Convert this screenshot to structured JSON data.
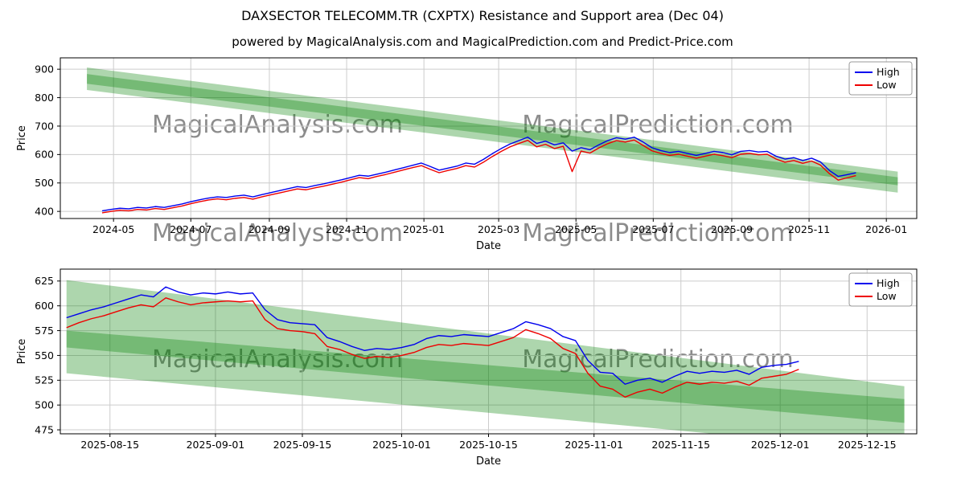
{
  "figure": {
    "title": "DAXSECTOR TELECOMM.TR (CXPTX) Resistance and Support area (Dec 04)",
    "subtitle": "powered by MagicalAnalysis.com and MagicalPrediction.com and Predict-Price.com",
    "watermark_left": "MagicalAnalysis.com",
    "watermark_right": "MagicalPrediction.com",
    "colors": {
      "high": "#0000ee",
      "low": "#ee0000",
      "band": "#008000",
      "grid": "#cccccc",
      "spine": "#000000"
    }
  },
  "chart_data": [
    {
      "type": "line",
      "xlabel": "Date",
      "ylabel": "Price",
      "x_domain": [
        "2024-03-20",
        "2026-01-25"
      ],
      "ylim": [
        375,
        940
      ],
      "yticks": [
        400,
        500,
        600,
        700,
        800,
        900
      ],
      "xticks": [
        {
          "date": "2024-05-01",
          "label": "2024-05"
        },
        {
          "date": "2024-07-01",
          "label": "2024-07"
        },
        {
          "date": "2024-09-01",
          "label": "2024-09"
        },
        {
          "date": "2024-11-01",
          "label": "2024-11"
        },
        {
          "date": "2025-01-01",
          "label": "2025-01"
        },
        {
          "date": "2025-03-01",
          "label": "2025-03"
        },
        {
          "date": "2025-05-01",
          "label": "2025-05"
        },
        {
          "date": "2025-07-01",
          "label": "2025-07"
        },
        {
          "date": "2025-09-01",
          "label": "2025-09"
        },
        {
          "date": "2025-11-01",
          "label": "2025-11"
        },
        {
          "date": "2026-01-01",
          "label": "2026-01"
        }
      ],
      "grid": true,
      "legend_position": "top-right",
      "legend": [
        {
          "label": "High",
          "color": "#0000ee"
        },
        {
          "label": "Low",
          "color": "#ee0000"
        }
      ],
      "band_alpha": 0.32,
      "bands": [
        {
          "x": [
            "2024-04-10",
            "2026-01-10"
          ],
          "top": [
            906,
            540
          ],
          "bottom": [
            849,
            492
          ]
        },
        {
          "x": [
            "2024-04-10",
            "2026-01-10"
          ],
          "top": [
            883,
            520
          ],
          "bottom": [
            827,
            466
          ]
        }
      ],
      "series": [
        {
          "name": "High",
          "color": "#0000ee",
          "start": "2024-04-22",
          "step_days": 7,
          "values": [
            402,
            407,
            411,
            409,
            414,
            412,
            417,
            414,
            420,
            426,
            434,
            441,
            447,
            451,
            449,
            454,
            457,
            451,
            459,
            466,
            473,
            480,
            487,
            484,
            491,
            497,
            504,
            511,
            519,
            527,
            524,
            531,
            538,
            546,
            554,
            562,
            570,
            558,
            545,
            552,
            559,
            570,
            566,
            583,
            603,
            621,
            637,
            649,
            661,
            639,
            647,
            634,
            641,
            612,
            624,
            617,
            634,
            649,
            659,
            654,
            661,
            644,
            624,
            614,
            607,
            611,
            604,
            597,
            604,
            611,
            607,
            599,
            611,
            614,
            609,
            611,
            594,
            584,
            589,
            579,
            587,
            574,
            544,
            523,
            529,
            536
          ]
        },
        {
          "name": "Low",
          "color": "#ee0000",
          "start": "2024-04-22",
          "step_days": 7,
          "values": [
            395,
            400,
            404,
            402,
            407,
            405,
            410,
            407,
            413,
            419,
            427,
            434,
            440,
            444,
            441,
            446,
            449,
            443,
            451,
            458,
            465,
            472,
            479,
            476,
            483,
            489,
            496,
            503,
            511,
            519,
            515,
            523,
            530,
            538,
            546,
            554,
            561,
            548,
            536,
            544,
            551,
            561,
            556,
            573,
            593,
            611,
            627,
            639,
            650,
            627,
            636,
            621,
            629,
            540,
            612,
            605,
            623,
            638,
            649,
            644,
            651,
            632,
            613,
            604,
            597,
            601,
            594,
            587,
            594,
            601,
            596,
            589,
            601,
            604,
            599,
            601,
            584,
            573,
            579,
            569,
            577,
            563,
            533,
            510,
            518,
            526
          ]
        }
      ]
    },
    {
      "type": "line",
      "xlabel": "Date",
      "ylabel": "Price",
      "x_domain": [
        "2025-08-07",
        "2025-12-23"
      ],
      "ylim": [
        471,
        637
      ],
      "yticks": [
        475,
        500,
        525,
        550,
        575,
        600,
        625
      ],
      "xticks": [
        {
          "date": "2025-08-15",
          "label": "2025-08-15"
        },
        {
          "date": "2025-09-01",
          "label": "2025-09-01"
        },
        {
          "date": "2025-09-15",
          "label": "2025-09-15"
        },
        {
          "date": "2025-10-01",
          "label": "2025-10-01"
        },
        {
          "date": "2025-10-15",
          "label": "2025-10-15"
        },
        {
          "date": "2025-11-01",
          "label": "2025-11-01"
        },
        {
          "date": "2025-11-15",
          "label": "2025-11-15"
        },
        {
          "date": "2025-12-01",
          "label": "2025-12-01"
        },
        {
          "date": "2025-12-15",
          "label": "2025-12-15"
        }
      ],
      "grid": true,
      "legend_position": "top-right",
      "legend": [
        {
          "label": "High",
          "color": "#0000ee"
        },
        {
          "label": "Low",
          "color": "#ee0000"
        }
      ],
      "band_alpha": 0.32,
      "bands": [
        {
          "x": [
            "2025-08-08",
            "2025-12-21"
          ],
          "top": [
            626,
            519
          ],
          "bottom": [
            558,
            482
          ]
        },
        {
          "x": [
            "2025-08-08",
            "2025-12-21"
          ],
          "top": [
            575,
            506
          ],
          "bottom": [
            532,
            453
          ]
        }
      ],
      "series": [
        {
          "name": "High",
          "color": "#0000ee",
          "start": "2025-08-08",
          "step_days": 2,
          "values": [
            588,
            592,
            596,
            599,
            603,
            607,
            611,
            609,
            619,
            614,
            611,
            613,
            612,
            614,
            612,
            613,
            596,
            586,
            583,
            582,
            581,
            568,
            564,
            559,
            555,
            557,
            556,
            558,
            561,
            567,
            570,
            569,
            571,
            570,
            569,
            573,
            577,
            584,
            581,
            577,
            569,
            565,
            545,
            533,
            532,
            521,
            525,
            527,
            523,
            529,
            534,
            532,
            534,
            533,
            535,
            531,
            538,
            540,
            541,
            544
          ]
        },
        {
          "name": "Low",
          "color": "#ee0000",
          "start": "2025-08-08",
          "step_days": 2,
          "values": [
            578,
            583,
            587,
            590,
            594,
            598,
            601,
            599,
            608,
            604,
            601,
            603,
            604,
            605,
            604,
            605,
            586,
            577,
            575,
            574,
            572,
            559,
            556,
            551,
            547,
            549,
            548,
            550,
            553,
            558,
            561,
            560,
            562,
            561,
            560,
            564,
            568,
            576,
            572,
            567,
            557,
            552,
            532,
            519,
            516,
            508,
            513,
            516,
            512,
            518,
            523,
            521,
            523,
            522,
            524,
            520,
            527,
            529,
            531,
            536
          ]
        }
      ]
    }
  ]
}
